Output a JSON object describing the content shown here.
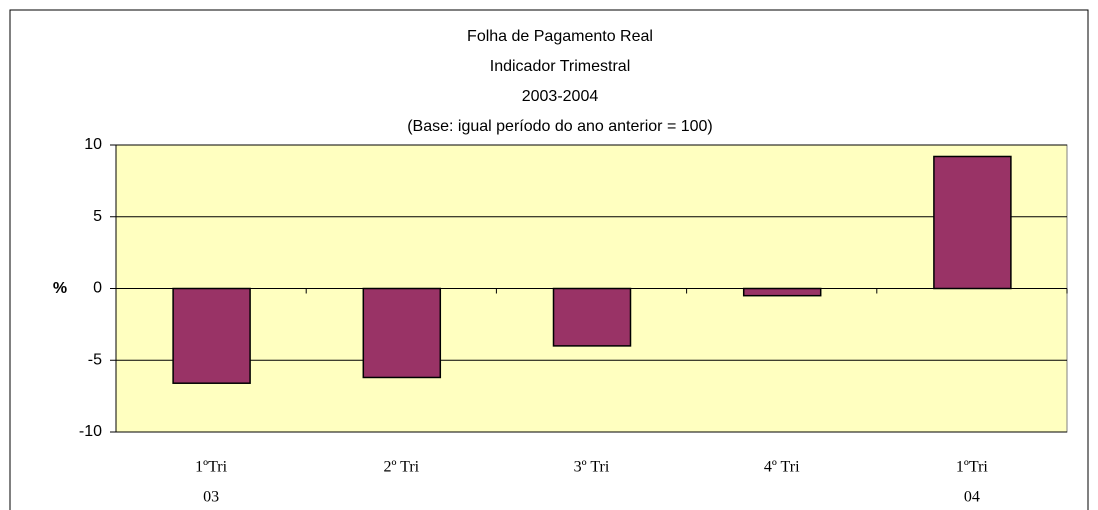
{
  "chart_data": {
    "type": "bar",
    "title": [
      "Folha de Pagamento Real",
      "Indicador Trimestral",
      "2003-2004",
      "(Base: igual período do ano anterior = 100)"
    ],
    "y_label": "%",
    "categories": [
      [
        "1ºTri",
        "03"
      ],
      [
        "2º Tri"
      ],
      [
        "3º Tri"
      ],
      [
        "4º Tri"
      ],
      [
        "1ºTri",
        "04"
      ]
    ],
    "values": [
      -6.6,
      -6.2,
      -4.0,
      -0.5,
      9.2
    ],
    "color": "#993366",
    "ylim": [
      -10,
      10
    ],
    "yticks": [
      -10,
      -5,
      0,
      5,
      10
    ],
    "grid": true
  }
}
